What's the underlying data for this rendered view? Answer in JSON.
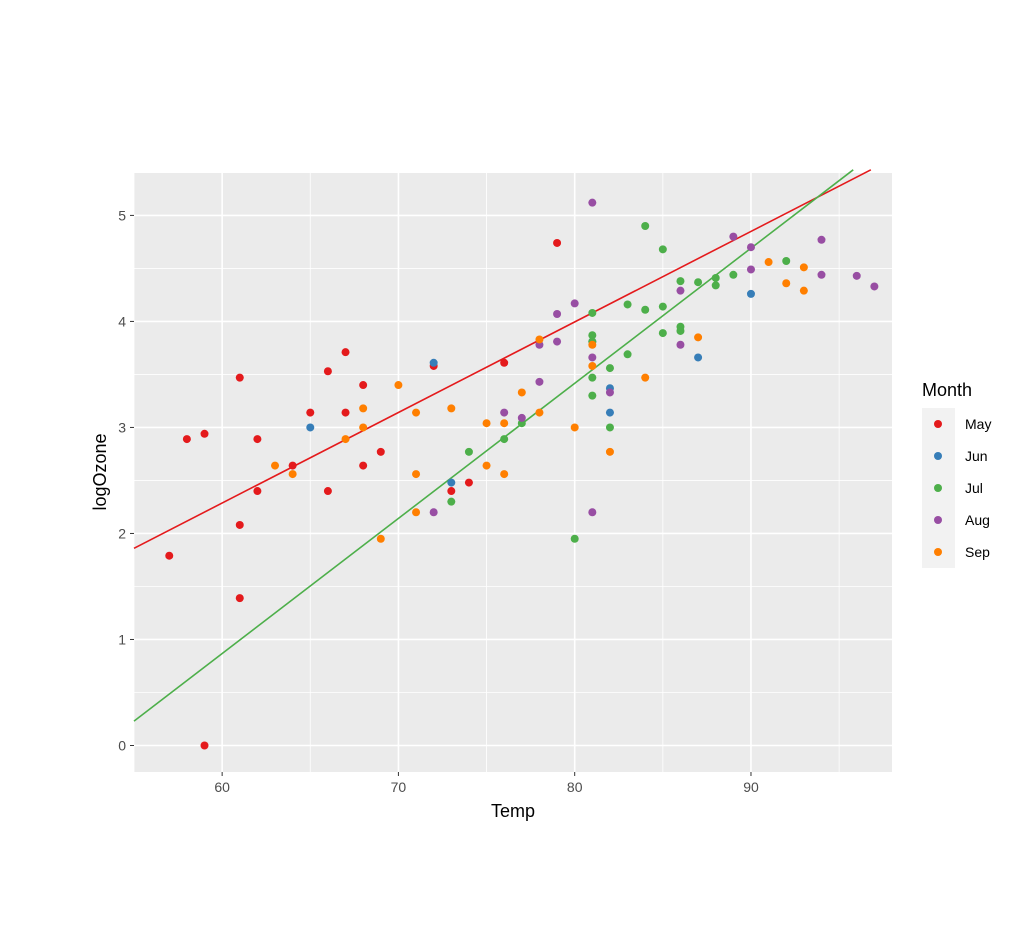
{
  "chart_data": {
    "type": "scatter",
    "xlabel": "Temp",
    "ylabel": "logOzone",
    "xlim": [
      55,
      98
    ],
    "ylim": [
      -0.25,
      5.4
    ],
    "x_ticks": [
      60,
      70,
      80,
      90
    ],
    "y_ticks": [
      0,
      1,
      2,
      3,
      4,
      5
    ],
    "grid": true,
    "legend": {
      "title": "Month",
      "position": "right",
      "entries": [
        "May",
        "Jun",
        "Jul",
        "Aug",
        "Sep"
      ]
    },
    "series": [
      {
        "name": "May",
        "color": "#E41A1C",
        "points": [
          [
            57,
            1.79
          ],
          [
            58,
            2.89
          ],
          [
            59,
            2.94
          ],
          [
            59,
            0.0
          ],
          [
            61,
            3.47
          ],
          [
            61,
            2.08
          ],
          [
            61,
            1.39
          ],
          [
            62,
            2.89
          ],
          [
            62,
            2.4
          ],
          [
            64,
            2.64
          ],
          [
            65,
            3.14
          ],
          [
            66,
            3.53
          ],
          [
            66,
            2.4
          ],
          [
            67,
            3.71
          ],
          [
            67,
            3.14
          ],
          [
            68,
            3.4
          ],
          [
            68,
            2.64
          ],
          [
            69,
            2.77
          ],
          [
            72,
            3.58
          ],
          [
            73,
            2.4
          ],
          [
            74,
            2.48
          ],
          [
            76,
            3.61
          ],
          [
            79,
            4.74
          ]
        ],
        "fit": {
          "x": [
            55,
            96.8
          ],
          "y": [
            1.86,
            5.43
          ]
        }
      },
      {
        "name": "Jun",
        "color": "#377EB8",
        "points": [
          [
            65,
            3.0
          ],
          [
            72,
            3.61
          ],
          [
            73,
            2.48
          ],
          [
            81,
            3.81
          ],
          [
            82,
            3.37
          ],
          [
            82,
            3.14
          ],
          [
            87,
            3.66
          ],
          [
            90,
            4.26
          ]
        ]
      },
      {
        "name": "Jul",
        "color": "#4DAF4A",
        "points": [
          [
            73,
            2.3
          ],
          [
            74,
            2.77
          ],
          [
            76,
            2.89
          ],
          [
            77,
            3.04
          ],
          [
            80,
            1.95
          ],
          [
            81,
            4.08
          ],
          [
            81,
            3.87
          ],
          [
            81,
            3.81
          ],
          [
            81,
            3.47
          ],
          [
            81,
            3.3
          ],
          [
            82,
            3.56
          ],
          [
            82,
            3.0
          ],
          [
            83,
            4.16
          ],
          [
            83,
            3.69
          ],
          [
            84,
            4.9
          ],
          [
            84,
            4.11
          ],
          [
            85,
            4.68
          ],
          [
            85,
            4.14
          ],
          [
            85,
            3.89
          ],
          [
            86,
            4.38
          ],
          [
            86,
            3.95
          ],
          [
            86,
            3.91
          ],
          [
            87,
            4.37
          ],
          [
            88,
            4.41
          ],
          [
            88,
            4.34
          ],
          [
            89,
            4.44
          ],
          [
            92,
            4.57
          ]
        ],
        "fit": {
          "x": [
            55,
            95.8
          ],
          "y": [
            0.23,
            5.43
          ]
        }
      },
      {
        "name": "Aug",
        "color": "#984EA3",
        "points": [
          [
            72,
            2.2
          ],
          [
            76,
            3.14
          ],
          [
            77,
            3.09
          ],
          [
            78,
            3.78
          ],
          [
            78,
            3.43
          ],
          [
            79,
            4.07
          ],
          [
            79,
            3.81
          ],
          [
            80,
            4.17
          ],
          [
            81,
            5.12
          ],
          [
            81,
            3.66
          ],
          [
            81,
            2.2
          ],
          [
            82,
            3.33
          ],
          [
            86,
            4.29
          ],
          [
            86,
            3.78
          ],
          [
            89,
            4.8
          ],
          [
            90,
            4.7
          ],
          [
            90,
            4.49
          ],
          [
            94,
            4.77
          ],
          [
            94,
            4.44
          ],
          [
            96,
            4.43
          ],
          [
            97,
            4.33
          ]
        ]
      },
      {
        "name": "Sep",
        "color": "#FF7F00",
        "points": [
          [
            63,
            2.64
          ],
          [
            64,
            2.56
          ],
          [
            67,
            2.89
          ],
          [
            68,
            3.18
          ],
          [
            68,
            3.0
          ],
          [
            69,
            1.95
          ],
          [
            70,
            3.4
          ],
          [
            71,
            3.14
          ],
          [
            71,
            2.56
          ],
          [
            71,
            2.2
          ],
          [
            73,
            3.18
          ],
          [
            75,
            3.04
          ],
          [
            75,
            2.64
          ],
          [
            76,
            3.04
          ],
          [
            76,
            2.56
          ],
          [
            77,
            3.33
          ],
          [
            78,
            3.83
          ],
          [
            78,
            3.14
          ],
          [
            80,
            3.0
          ],
          [
            81,
            3.78
          ],
          [
            81,
            3.58
          ],
          [
            82,
            2.77
          ],
          [
            84,
            3.47
          ],
          [
            87,
            3.85
          ],
          [
            91,
            4.56
          ],
          [
            92,
            4.36
          ],
          [
            93,
            4.51
          ],
          [
            93,
            4.29
          ]
        ]
      }
    ]
  }
}
